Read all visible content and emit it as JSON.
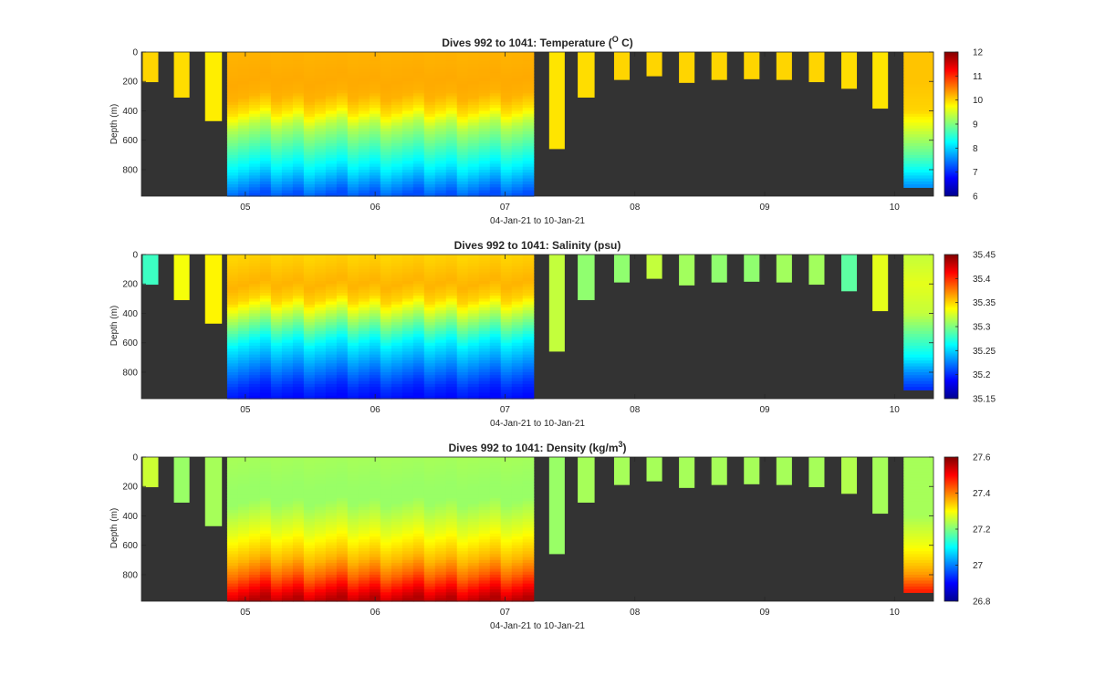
{
  "figure": {
    "x_axis_label": "04-Jan-21 to 10-Jan-21",
    "x_tick_labels": [
      "05",
      "06",
      "07",
      "08",
      "09",
      "10"
    ],
    "y_axis_label": "Depth (m)",
    "y_tick_labels": [
      "0",
      "200",
      "400",
      "600",
      "800"
    ],
    "background_color": "#333333",
    "colormap": "jet"
  },
  "chart_data": [
    {
      "type": "heatmap",
      "title_main": "Dives 992 to 1041: Temperature (",
      "title_sup": "O",
      "title_tail": " C)",
      "variable": "Temperature",
      "unit": "°C",
      "xlabel": "04-Jan-21 to 10-Jan-21",
      "ylabel": "Depth (m)",
      "xlim": [
        4.2,
        10.3
      ],
      "ylim": [
        980,
        0
      ],
      "y_reversed": true,
      "colorbar": {
        "min": 6,
        "max": 12,
        "ticks": [
          6,
          7,
          8,
          9,
          10,
          11,
          12
        ],
        "tick_labels": [
          "6",
          "7",
          "8",
          "9",
          "10",
          "11",
          "12"
        ]
      }
    },
    {
      "type": "heatmap",
      "title_main": "Dives 992 to 1041: Salinity (psu)",
      "title_sup": "",
      "title_tail": "",
      "variable": "Salinity",
      "unit": "psu",
      "xlabel": "04-Jan-21 to 10-Jan-21",
      "ylabel": "Depth (m)",
      "xlim": [
        4.2,
        10.3
      ],
      "ylim": [
        980,
        0
      ],
      "y_reversed": true,
      "colorbar": {
        "min": 35.15,
        "max": 35.45,
        "ticks": [
          35.15,
          35.2,
          35.25,
          35.3,
          35.35,
          35.4,
          35.45
        ],
        "tick_labels": [
          "35.15",
          "35.2",
          "35.25",
          "35.3",
          "35.35",
          "35.4",
          "35.45"
        ]
      }
    },
    {
      "type": "heatmap",
      "title_main": "Dives 992 to 1041: Density (kg/m",
      "title_sup": "3",
      "title_tail": ")",
      "variable": "Density",
      "unit": "kg/m3",
      "xlabel": "04-Jan-21 to 10-Jan-21",
      "ylabel": "Depth (m)",
      "xlim": [
        4.2,
        10.3
      ],
      "ylim": [
        980,
        0
      ],
      "y_reversed": true,
      "colorbar": {
        "min": 26.8,
        "max": 27.6,
        "ticks": [
          26.8,
          27,
          27.2,
          27.4,
          27.6
        ],
        "tick_labels": [
          "26.8",
          "27",
          "27.2",
          "27.4",
          "27.6"
        ]
      }
    }
  ],
  "dives": {
    "shallow_profiles": [
      {
        "t_start": 4.21,
        "t_end": 4.33,
        "max_depth": 205,
        "temp": 10.0,
        "sal": 35.28,
        "dens": 27.26
      },
      {
        "t_start": 4.45,
        "t_end": 4.57,
        "max_depth": 310,
        "temp": 9.95,
        "sal": 35.335,
        "dens": 27.22
      },
      {
        "t_start": 4.69,
        "t_end": 4.82,
        "max_depth": 470,
        "temp": 9.85,
        "sal": 35.34,
        "dens": 27.23
      },
      {
        "t_start": 7.34,
        "t_end": 7.46,
        "max_depth": 660,
        "temp": 9.9,
        "sal": 35.32,
        "dens": 27.22
      },
      {
        "t_start": 7.56,
        "t_end": 7.69,
        "max_depth": 310,
        "temp": 9.95,
        "sal": 35.305,
        "dens": 27.23
      },
      {
        "t_start": 7.84,
        "t_end": 7.96,
        "max_depth": 190,
        "temp": 10.0,
        "sal": 35.305,
        "dens": 27.23
      },
      {
        "t_start": 8.09,
        "t_end": 8.21,
        "max_depth": 165,
        "temp": 10.0,
        "sal": 35.32,
        "dens": 27.23
      },
      {
        "t_start": 8.34,
        "t_end": 8.46,
        "max_depth": 210,
        "temp": 10.0,
        "sal": 35.31,
        "dens": 27.23
      },
      {
        "t_start": 8.59,
        "t_end": 8.71,
        "max_depth": 190,
        "temp": 10.0,
        "sal": 35.305,
        "dens": 27.23
      },
      {
        "t_start": 8.84,
        "t_end": 8.96,
        "max_depth": 185,
        "temp": 10.0,
        "sal": 35.305,
        "dens": 27.23
      },
      {
        "t_start": 9.09,
        "t_end": 9.21,
        "max_depth": 190,
        "temp": 10.0,
        "sal": 35.31,
        "dens": 27.23
      },
      {
        "t_start": 9.34,
        "t_end": 9.46,
        "max_depth": 205,
        "temp": 10.0,
        "sal": 35.31,
        "dens": 27.23
      },
      {
        "t_start": 9.59,
        "t_end": 9.71,
        "max_depth": 250,
        "temp": 9.95,
        "sal": 35.29,
        "dens": 27.24
      },
      {
        "t_start": 9.83,
        "t_end": 9.95,
        "max_depth": 385,
        "temp": 9.9,
        "sal": 35.33,
        "dens": 27.23
      }
    ],
    "continuous_block": {
      "t_start": 4.86,
      "t_end": 7.22,
      "bottom_depth": 980,
      "n_columns": 28,
      "profile_depths": [
        0,
        200,
        300,
        400,
        500,
        600,
        700,
        800,
        900,
        980
      ],
      "temp_profile": [
        10.2,
        10.25,
        10.2,
        9.9,
        9.3,
        8.9,
        8.5,
        8.1,
        7.6,
        7.2
      ],
      "sal_profile": [
        35.35,
        35.36,
        35.35,
        35.32,
        35.29,
        35.26,
        35.24,
        35.22,
        35.2,
        35.19
      ],
      "dens_profile": [
        27.23,
        27.22,
        27.22,
        27.25,
        27.28,
        27.32,
        27.36,
        27.42,
        27.5,
        27.56
      ]
    },
    "last_profile": {
      "t_start": 10.07,
      "t_end": 10.3,
      "bottom_depth": 915,
      "profile_depths": [
        0,
        200,
        400,
        500,
        600,
        700,
        800,
        915
      ],
      "temp_profile": [
        10.1,
        10.1,
        10.0,
        9.6,
        9.2,
        8.8,
        8.3,
        7.6
      ],
      "sal_profile": [
        35.32,
        35.33,
        35.32,
        35.3,
        35.28,
        35.26,
        35.23,
        35.2
      ],
      "dens_profile": [
        27.23,
        27.23,
        27.23,
        27.26,
        27.29,
        27.33,
        27.38,
        27.48
      ]
    }
  }
}
